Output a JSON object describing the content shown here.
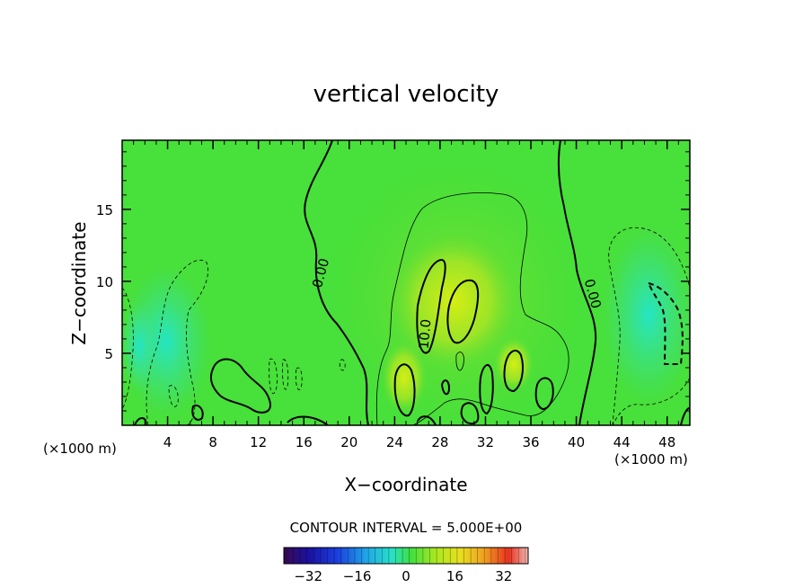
{
  "chart_data": {
    "type": "contour",
    "title": "vertical velocity",
    "xlabel": "X−coordinate",
    "ylabel": "Z−coordinate",
    "x_unit_left": "(×1000 m)",
    "x_unit_right": "(×1000 m)",
    "x_ticks": [
      "4",
      "8",
      "12",
      "16",
      "20",
      "24",
      "28",
      "32",
      "36",
      "40",
      "44",
      "48"
    ],
    "y_ticks": [
      "5",
      "10",
      "15"
    ],
    "xlim": [
      0,
      50
    ],
    "ylim": [
      0,
      19.8
    ],
    "contour_interval_text": "CONTOUR INTERVAL = 5.000E+00",
    "contour_labels": [
      "0.00",
      "10.0",
      "0.00"
    ],
    "colorbar": {
      "range": [
        -40,
        40
      ],
      "ticks": [
        "−32",
        "−16",
        "0",
        "16",
        "32"
      ]
    },
    "colors": {
      "background_field": "#44e03c",
      "updraft": "#c6ec1a",
      "downdraft": "#2ee6c8"
    }
  }
}
